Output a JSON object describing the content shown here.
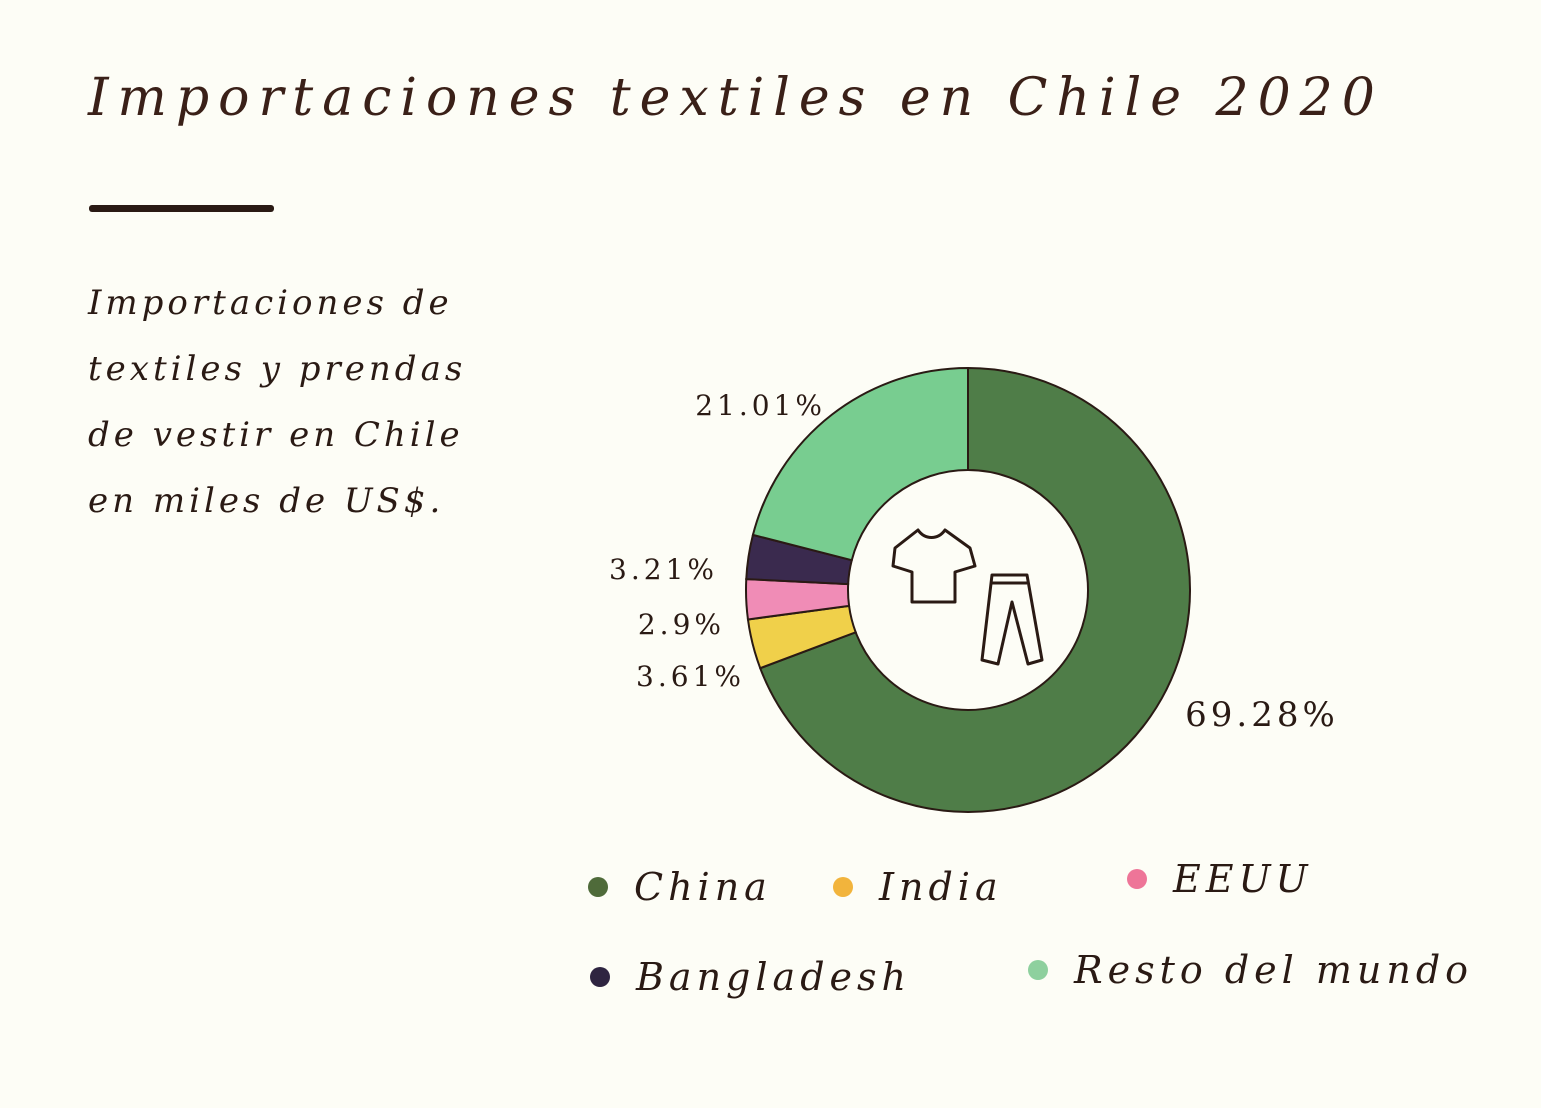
{
  "header": {
    "title": "Importaciones textiles en Chile 2020",
    "subtitle": "Importaciones de textiles y prendas de vestir en Chile en miles de US$."
  },
  "chart_data": {
    "type": "pie",
    "variant": "donut",
    "title": "Importaciones textiles en Chile 2020",
    "unit": "%",
    "series": [
      {
        "name": "China",
        "value": 69.28,
        "label": "69.28%",
        "color": "#4f7d48"
      },
      {
        "name": "India",
        "value": 3.61,
        "label": "3.61%",
        "color": "#f0d04a"
      },
      {
        "name": "EEUU",
        "value": 2.9,
        "label": "2.9%",
        "color": "#f08cb6"
      },
      {
        "name": "Bangladesh",
        "value": 3.21,
        "label": "3.21%",
        "color": "#3a2a4e"
      },
      {
        "name": "Resto del mundo",
        "value": 21.01,
        "label": "21.01%",
        "color": "#78cd90"
      }
    ],
    "legend": {
      "position": "bottom",
      "items": [
        "China",
        "India",
        "EEUU",
        "Bangladesh",
        "Resto del mundo"
      ],
      "colors": [
        "#4f6b3a",
        "#f2b43c",
        "#ee7598",
        "#2e2440",
        "#8ed09e"
      ]
    },
    "center_icons": [
      "t-shirt-icon",
      "pants-icon"
    ]
  }
}
